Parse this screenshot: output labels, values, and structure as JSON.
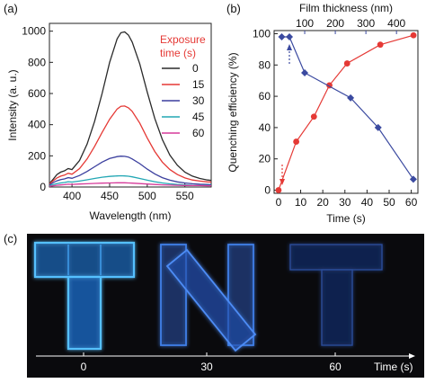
{
  "panels": {
    "a": "(a)",
    "b": "(b)",
    "c": "(c)"
  },
  "chart_data": [
    {
      "type": "line",
      "panel": "(a)",
      "xlabel": "Wavelength (nm)",
      "ylabel": "Intensity (a. u.)",
      "xlim": [
        370,
        585
      ],
      "ylim": [
        0,
        1050
      ],
      "xticks": [
        400,
        450,
        500,
        550
      ],
      "yticks": [
        0,
        200,
        400,
        600,
        800,
        1000
      ],
      "legend_title": "Exposure time (s)",
      "legend_title_lines": [
        "Exposure",
        "time (s)"
      ],
      "legend_position": "top-right",
      "x": [
        370,
        375,
        380,
        385,
        390,
        395,
        400,
        410,
        420,
        430,
        440,
        450,
        460,
        465,
        470,
        475,
        480,
        490,
        500,
        510,
        520,
        530,
        540,
        550,
        560,
        570,
        580,
        585
      ],
      "series": [
        {
          "name": "0",
          "color": "#2a2a2a",
          "values": [
            22,
            50,
            80,
            96,
            104,
            118,
            112,
            170,
            275,
            420,
            600,
            800,
            950,
            990,
            995,
            975,
            930,
            790,
            610,
            440,
            305,
            205,
            140,
            95,
            70,
            55,
            45,
            42
          ]
        },
        {
          "name": "15",
          "color": "#e53935",
          "values": [
            20,
            40,
            58,
            70,
            76,
            88,
            82,
            118,
            180,
            260,
            350,
            435,
            500,
            518,
            520,
            508,
            485,
            410,
            315,
            228,
            160,
            112,
            80,
            58,
            45,
            38,
            33,
            32
          ]
        },
        {
          "name": "30",
          "color": "#3b3f9e",
          "values": [
            14,
            28,
            40,
            48,
            52,
            60,
            56,
            74,
            100,
            130,
            160,
            183,
            195,
            198,
            197,
            192,
            180,
            150,
            115,
            84,
            60,
            44,
            33,
            26,
            21,
            18,
            16,
            15
          ]
        },
        {
          "name": "45",
          "color": "#22a7b4",
          "values": [
            8,
            16,
            22,
            26,
            29,
            34,
            32,
            38,
            46,
            55,
            63,
            68,
            71,
            72,
            71,
            69,
            65,
            55,
            44,
            34,
            26,
            20,
            16,
            13,
            11,
            10,
            9,
            9
          ]
        },
        {
          "name": "60",
          "color": "#d63a9a",
          "values": [
            4,
            8,
            11,
            13,
            15,
            18,
            17,
            19,
            21,
            23,
            25,
            26,
            27,
            27,
            27,
            26,
            25,
            22,
            19,
            16,
            14,
            12,
            11,
            10,
            9,
            9,
            8,
            8
          ]
        }
      ]
    },
    {
      "type": "line",
      "panel": "(b)",
      "xlabel": "Time (s)",
      "ylabel": "Quenching efficiency (%)",
      "xlim": [
        -2,
        63
      ],
      "ylim": [
        -2,
        102
      ],
      "xticks": [
        0,
        10,
        20,
        30,
        40,
        50,
        60
      ],
      "yticks": [
        0,
        20,
        40,
        60,
        80,
        100
      ],
      "top_axis": {
        "label": "Film thickness (nm)",
        "ticks": [
          100,
          200,
          300,
          400
        ]
      },
      "series": [
        {
          "name": "",
          "axis": "bottom-time",
          "color": "#e53935",
          "marker": "circle",
          "x": [
            0,
            8,
            16,
            23,
            31,
            46,
            61
          ],
          "values": [
            0,
            31,
            47,
            67,
            81,
            93,
            99
          ]
        },
        {
          "name": "",
          "axis": "top-thickness",
          "color": "#3b4aa0",
          "marker": "diamond",
          "x": [
            25,
            50,
            100,
            250,
            340,
            455
          ],
          "values": [
            98,
            98,
            75,
            59,
            40,
            7
          ]
        }
      ]
    }
  ],
  "photo": {
    "letters": [
      "T",
      "N",
      "T"
    ],
    "time_ticks": [
      "0",
      "30",
      "60"
    ],
    "time_label": "Time (s)",
    "glow_colors": [
      "#3aa8ff",
      "#3f7fe8",
      "#25469a"
    ]
  }
}
